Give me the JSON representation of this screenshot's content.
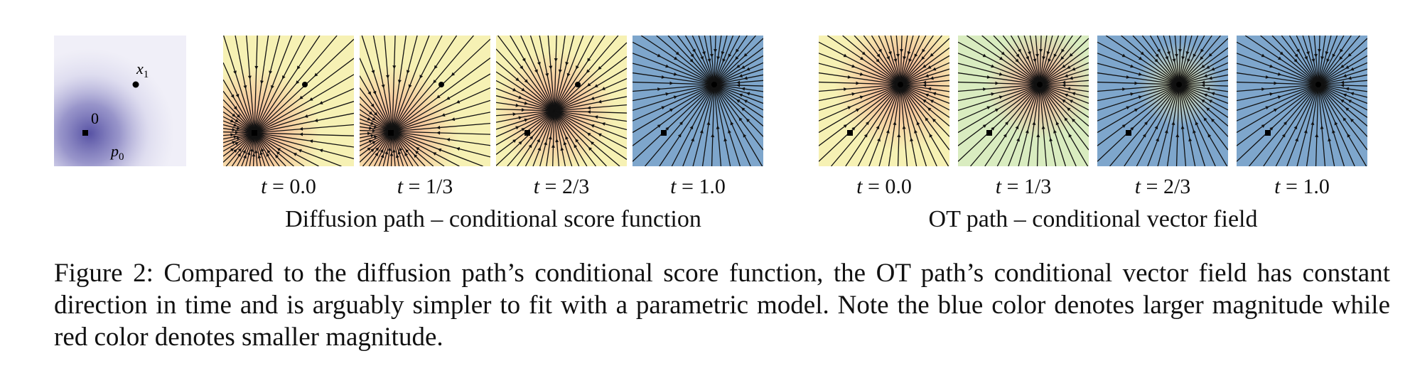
{
  "legend_panel": {
    "origin_label": "0",
    "target_label": "x",
    "target_sub": "1",
    "dist_label": "p",
    "dist_sub": "0"
  },
  "diffusion": {
    "title": "Diffusion path – conditional score function",
    "panels": [
      {
        "t_label": "t",
        "t_value": "0.0"
      },
      {
        "t_label": "t",
        "t_value": "1/3"
      },
      {
        "t_label": "t",
        "t_value": "2/3"
      },
      {
        "t_label": "t",
        "t_value": "1.0"
      }
    ]
  },
  "ot": {
    "title": "OT path – conditional vector field",
    "panels": [
      {
        "t_label": "t",
        "t_value": "0.0"
      },
      {
        "t_label": "t",
        "t_value": "1/3"
      },
      {
        "t_label": "t",
        "t_value": "2/3"
      },
      {
        "t_label": "t",
        "t_value": "1.0"
      }
    ]
  },
  "caption": "Figure 2: Compared to the diffusion path’s conditional score function, the OT path’s conditional vector field has constant direction in time and is arguably simpler to fit with a parametric model. Note the blue color denotes larger magnitude while red color denotes smaller magnitude.",
  "colors": {
    "small_magnitude": "#f4a58a",
    "mid": "#f6f1b4",
    "large_magnitude": "#7ea6cc",
    "density": "#4f4aa0"
  }
}
